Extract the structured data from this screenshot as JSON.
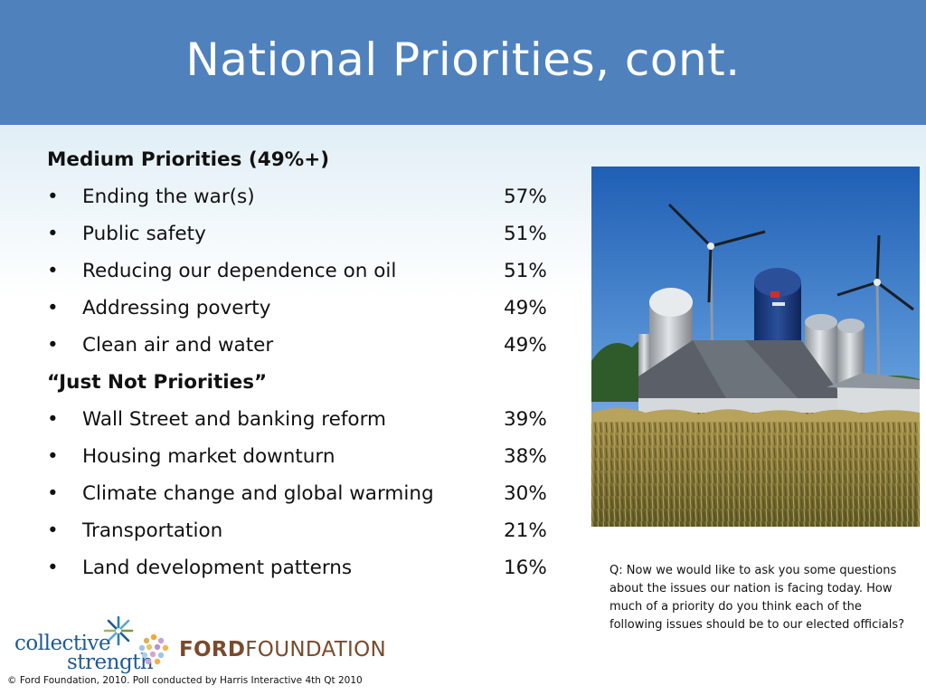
{
  "slide": {
    "title": "National Priorities, cont.",
    "medium": {
      "heading": "Medium Priorities (49%+)",
      "items": [
        {
          "label": "Ending the war(s)",
          "pct": "57%"
        },
        {
          "label": "Public safety",
          "pct": "51%"
        },
        {
          "label": "Reducing our dependence on oil",
          "pct": "51%"
        },
        {
          "label": "Addressing poverty",
          "pct": "49%"
        },
        {
          "label": "Clean air and water",
          "pct": "49%"
        }
      ]
    },
    "not_priorities": {
      "heading": "“Just Not Priorities”",
      "items": [
        {
          "label": "Wall Street and banking reform",
          "pct": "39%"
        },
        {
          "label": "Housing market downturn",
          "pct": "38%"
        },
        {
          "label": "Climate change and global warming",
          "pct": "30%"
        },
        {
          "label": "Transportation",
          "pct": "21%"
        },
        {
          "label": "Land development patterns",
          "pct": "16%"
        }
      ]
    },
    "bullet": "•",
    "question": "Q: Now we would like to ask you some questions about the issues our nation is facing today. How much of a priority do you think each of the following issues should be to our elected officials?",
    "footer": "© Ford Foundation, 2010. Poll conducted by Harris Interactive 4th Qt 2010",
    "logos": {
      "collective_strength": {
        "line1": "collective",
        "line2": "strength",
        "icon": "starburst-icon"
      },
      "ford_foundation": {
        "part1": "FORD",
        "part2": "FOUNDATION",
        "icon": "dot-cluster-icon"
      }
    },
    "photo": {
      "subject": "farm-windmills-photo"
    },
    "colors": {
      "title_bar": "#4f81bd",
      "title_text": "#ffffff",
      "collective_blue": "#1e5b94",
      "ford_brown": "#7a4a2c"
    }
  }
}
